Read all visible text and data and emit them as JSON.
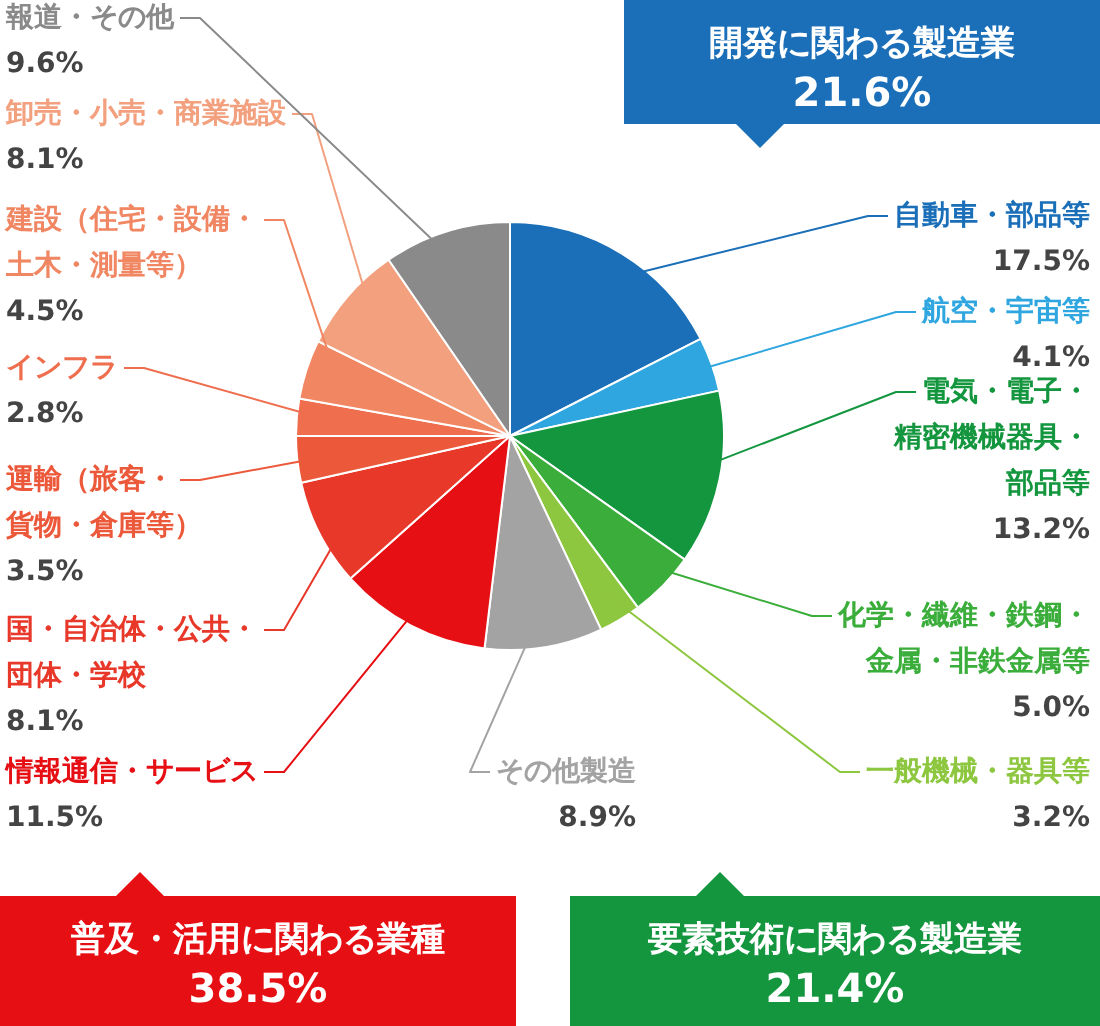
{
  "chart_data": {
    "type": "pie",
    "categories": [
      "自動車・部品等",
      "航空・宇宙等",
      "電気・電子・精密機械器具・部品等",
      "化学・繊維・鉄鋼・金属・非鉄金属等",
      "一般機械・器具等",
      "その他製造",
      "情報通信・サービス",
      "国・自治体・公共・団体・学校",
      "運輸（旅客・貨物・倉庫等）",
      "インフラ",
      "建設（住宅・設備・土木・測量等）",
      "卸売・小売・商業施設",
      "報道・その他"
    ],
    "values": [
      17.5,
      4.1,
      13.2,
      5.0,
      3.2,
      8.9,
      11.5,
      8.1,
      3.5,
      2.8,
      4.5,
      8.1,
      9.6
    ],
    "value_labels": [
      "17.5%",
      "4.1%",
      "13.2%",
      "5.0%",
      "3.2%",
      "8.9%",
      "11.5%",
      "8.1%",
      "3.5%",
      "2.8%",
      "4.5%",
      "8.1%",
      "9.6%"
    ],
    "colors": [
      "#1a6fb8",
      "#2fa6df",
      "#14963f",
      "#3aad3a",
      "#8dc63f",
      "#a3a3a3",
      "#e60f14",
      "#e8382a",
      "#ec583a",
      "#ee6e4e",
      "#f08662",
      "#f2a07e",
      "#8a8a8a"
    ],
    "annotations": [
      "開発に関わる製造業\n21.6%",
      "要素技術に関わる製造業\n21.4%",
      "普及・活用に関わる業種\n38.5%"
    ]
  }
}
